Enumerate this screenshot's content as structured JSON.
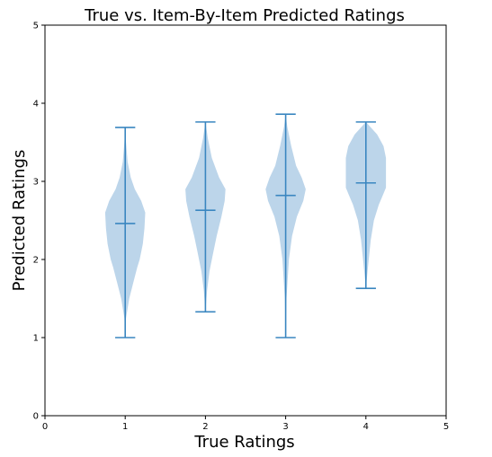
{
  "chart_data": {
    "type": "violin",
    "title": "True vs. Item-By-Item Predicted Ratings",
    "xlabel": "True Ratings",
    "ylabel": "Predicted Ratings",
    "xlim": [
      0,
      5
    ],
    "ylim": [
      0,
      5
    ],
    "xticks": [
      "0",
      "1",
      "2",
      "3",
      "4",
      "5"
    ],
    "yticks": [
      "0",
      "1",
      "2",
      "3",
      "4",
      "5"
    ],
    "grid": false,
    "colors": {
      "body": "#bcd5ea",
      "lines": "#3a86c0"
    },
    "violins": [
      {
        "x": 1,
        "min": 1.0,
        "max": 3.69,
        "mean": 2.46,
        "profile": [
          [
            1.0,
            0.0
          ],
          [
            1.25,
            0.01
          ],
          [
            1.5,
            0.05
          ],
          [
            1.7,
            0.1
          ],
          [
            1.9,
            0.15
          ],
          [
            2.0,
            0.18
          ],
          [
            2.2,
            0.22
          ],
          [
            2.4,
            0.24
          ],
          [
            2.6,
            0.25
          ],
          [
            2.75,
            0.2
          ],
          [
            2.9,
            0.12
          ],
          [
            3.05,
            0.07
          ],
          [
            3.25,
            0.03
          ],
          [
            3.5,
            0.01
          ],
          [
            3.69,
            0.0
          ]
        ]
      },
      {
        "x": 2,
        "min": 1.33,
        "max": 3.76,
        "mean": 2.63,
        "profile": [
          [
            1.33,
            0.0
          ],
          [
            1.6,
            0.02
          ],
          [
            1.85,
            0.05
          ],
          [
            2.1,
            0.1
          ],
          [
            2.3,
            0.14
          ],
          [
            2.55,
            0.2
          ],
          [
            2.75,
            0.24
          ],
          [
            2.9,
            0.25
          ],
          [
            3.05,
            0.17
          ],
          [
            3.3,
            0.08
          ],
          [
            3.55,
            0.03
          ],
          [
            3.76,
            0.0
          ]
        ]
      },
      {
        "x": 3,
        "min": 1.0,
        "max": 3.86,
        "mean": 2.82,
        "profile": [
          [
            1.0,
            0.0
          ],
          [
            1.5,
            0.01
          ],
          [
            2.0,
            0.04
          ],
          [
            2.3,
            0.08
          ],
          [
            2.55,
            0.14
          ],
          [
            2.75,
            0.22
          ],
          [
            2.9,
            0.25
          ],
          [
            3.05,
            0.2
          ],
          [
            3.2,
            0.13
          ],
          [
            3.45,
            0.07
          ],
          [
            3.7,
            0.02
          ],
          [
            3.86,
            0.0
          ]
        ]
      },
      {
        "x": 4,
        "min": 1.63,
        "max": 3.76,
        "mean": 2.98,
        "profile": [
          [
            1.63,
            0.0
          ],
          [
            1.95,
            0.03
          ],
          [
            2.25,
            0.06
          ],
          [
            2.5,
            0.1
          ],
          [
            2.7,
            0.16
          ],
          [
            2.82,
            0.21
          ],
          [
            2.92,
            0.25
          ],
          [
            3.1,
            0.25
          ],
          [
            3.3,
            0.25
          ],
          [
            3.45,
            0.22
          ],
          [
            3.6,
            0.14
          ],
          [
            3.76,
            0.0
          ]
        ]
      }
    ]
  }
}
